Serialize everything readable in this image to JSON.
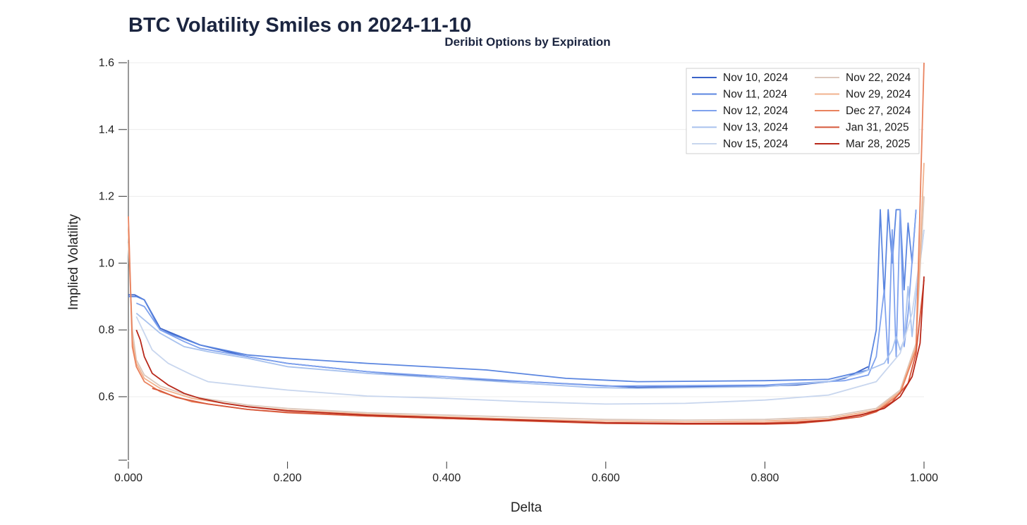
{
  "chart_data": {
    "type": "line",
    "title": "BTC Volatility Smiles on 2024-11-10",
    "subtitle": "Deribit Options by Expiration",
    "xlabel": "Delta",
    "ylabel": "Implied Volatility",
    "xlim": [
      0.0,
      1.0
    ],
    "ylim": [
      0.41,
      1.6
    ],
    "x_ticks": [
      "0.000",
      "0.200",
      "0.400",
      "0.600",
      "0.800",
      "1.000"
    ],
    "y_ticks": [
      "0.6",
      "0.8",
      "1.0",
      "1.2",
      "1.4",
      "1.6"
    ],
    "grid": "horizontal",
    "legend_position": "top-right",
    "series": [
      {
        "name": "Nov 10, 2024",
        "color": "#3a62c8",
        "x": [
          0.0,
          0.008,
          0.02,
          0.04,
          0.09,
          0.15,
          0.2,
          0.3,
          0.4,
          0.5,
          0.64,
          0.8,
          0.84,
          0.88,
          0.9,
          0.93
        ],
        "y": [
          0.905,
          0.905,
          0.89,
          0.805,
          0.755,
          0.72,
          0.7,
          0.675,
          0.655,
          0.645,
          0.628,
          0.632,
          0.635,
          0.645,
          0.655,
          0.69
        ]
      },
      {
        "name": "Nov 11, 2024",
        "color": "#5b86e0",
        "x": [
          0.0,
          0.01,
          0.02,
          0.04,
          0.09,
          0.15,
          0.2,
          0.3,
          0.45,
          0.55,
          0.64,
          0.8,
          0.88,
          0.93,
          0.94,
          0.945,
          0.95,
          0.955,
          0.96,
          0.965,
          0.97,
          0.975,
          0.98,
          0.985,
          0.99
        ],
        "y": [
          0.9,
          0.9,
          0.89,
          0.8,
          0.755,
          0.725,
          0.715,
          0.7,
          0.68,
          0.655,
          0.645,
          0.648,
          0.652,
          0.68,
          0.8,
          1.16,
          0.9,
          1.16,
          1.0,
          1.16,
          1.16,
          0.92,
          1.12,
          1.0,
          1.16
        ]
      },
      {
        "name": "Nov 12, 2024",
        "color": "#7fa2ee",
        "x": [
          0.01,
          0.02,
          0.04,
          0.07,
          0.09,
          0.15,
          0.2,
          0.3,
          0.4,
          0.5,
          0.6,
          0.7,
          0.8,
          0.9,
          0.93,
          0.94,
          0.95,
          0.955,
          0.96,
          0.965,
          0.97,
          0.975,
          0.98,
          0.99
        ],
        "y": [
          0.88,
          0.87,
          0.8,
          0.765,
          0.745,
          0.72,
          0.7,
          0.675,
          0.66,
          0.645,
          0.632,
          0.633,
          0.635,
          0.648,
          0.665,
          0.72,
          0.92,
          0.7,
          1.1,
          0.72,
          1.16,
          0.75,
          0.85,
          1.16
        ]
      },
      {
        "name": "Nov 13, 2024",
        "color": "#a8c2ee",
        "x": [
          0.01,
          0.02,
          0.04,
          0.07,
          0.1,
          0.15,
          0.2,
          0.3,
          0.4,
          0.5,
          0.58,
          0.64,
          0.8,
          0.88,
          0.92,
          0.95,
          0.96,
          0.965,
          0.97,
          0.975,
          0.98,
          0.985,
          0.99,
          1.0
        ],
        "y": [
          0.85,
          0.83,
          0.79,
          0.75,
          0.735,
          0.715,
          0.69,
          0.67,
          0.655,
          0.64,
          0.628,
          0.625,
          0.63,
          0.645,
          0.67,
          0.7,
          0.74,
          0.78,
          0.74,
          0.77,
          0.93,
          0.78,
          0.9,
          1.1
        ]
      },
      {
        "name": "Nov 15, 2024",
        "color": "#c8d6ee",
        "x": [
          0.01,
          0.02,
          0.03,
          0.05,
          0.08,
          0.1,
          0.15,
          0.2,
          0.3,
          0.4,
          0.5,
          0.6,
          0.7,
          0.8,
          0.88,
          0.94,
          0.97,
          0.985,
          1.0
        ],
        "y": [
          0.84,
          0.79,
          0.74,
          0.7,
          0.665,
          0.645,
          0.632,
          0.62,
          0.602,
          0.595,
          0.585,
          0.578,
          0.58,
          0.59,
          0.605,
          0.645,
          0.73,
          0.85,
          1.1
        ]
      },
      {
        "name": "Nov 22, 2024",
        "color": "#dcc8bc",
        "x": [
          0.0,
          0.005,
          0.01,
          0.02,
          0.04,
          0.08,
          0.15,
          0.2,
          0.3,
          0.4,
          0.5,
          0.6,
          0.7,
          0.8,
          0.88,
          0.94,
          0.97,
          0.99,
          1.0
        ],
        "y": [
          1.06,
          0.8,
          0.71,
          0.665,
          0.632,
          0.6,
          0.575,
          0.565,
          0.552,
          0.545,
          0.538,
          0.532,
          0.53,
          0.532,
          0.54,
          0.565,
          0.62,
          0.76,
          1.2
        ]
      },
      {
        "name": "Nov 29, 2024",
        "color": "#f2b28d",
        "x": [
          0.0,
          0.005,
          0.01,
          0.02,
          0.04,
          0.08,
          0.15,
          0.2,
          0.3,
          0.4,
          0.5,
          0.6,
          0.7,
          0.8,
          0.88,
          0.94,
          0.97,
          0.99,
          1.0
        ],
        "y": [
          1.1,
          0.77,
          0.7,
          0.655,
          0.625,
          0.595,
          0.57,
          0.56,
          0.548,
          0.54,
          0.532,
          0.527,
          0.525,
          0.527,
          0.535,
          0.56,
          0.615,
          0.75,
          1.3
        ]
      },
      {
        "name": "Dec 27, 2024",
        "color": "#e9825e",
        "x": [
          0.0,
          0.005,
          0.01,
          0.02,
          0.04,
          0.08,
          0.15,
          0.2,
          0.3,
          0.4,
          0.5,
          0.6,
          0.7,
          0.8,
          0.88,
          0.94,
          0.97,
          0.99,
          1.0
        ],
        "y": [
          1.14,
          0.75,
          0.69,
          0.645,
          0.615,
          0.585,
          0.562,
          0.552,
          0.542,
          0.535,
          0.528,
          0.522,
          0.52,
          0.522,
          0.53,
          0.555,
          0.61,
          0.74,
          1.6
        ]
      },
      {
        "name": "Jan 31, 2025",
        "color": "#d6573a",
        "x": [
          0.03,
          0.04,
          0.06,
          0.08,
          0.1,
          0.15,
          0.2,
          0.3,
          0.4,
          0.5,
          0.6,
          0.7,
          0.8,
          0.84,
          0.88,
          0.92,
          0.94,
          0.96,
          0.98,
          0.99,
          1.0
        ],
        "y": [
          0.625,
          0.618,
          0.598,
          0.588,
          0.578,
          0.562,
          0.553,
          0.542,
          0.535,
          0.527,
          0.52,
          0.518,
          0.518,
          0.52,
          0.528,
          0.54,
          0.555,
          0.585,
          0.64,
          0.73,
          0.95
        ]
      },
      {
        "name": "Mar 28, 2025",
        "color": "#b8281a",
        "x": [
          0.01,
          0.015,
          0.02,
          0.03,
          0.05,
          0.07,
          0.09,
          0.12,
          0.15,
          0.2,
          0.3,
          0.4,
          0.5,
          0.6,
          0.7,
          0.8,
          0.84,
          0.88,
          0.92,
          0.95,
          0.97,
          0.985,
          0.995,
          1.0
        ],
        "y": [
          0.8,
          0.77,
          0.72,
          0.67,
          0.635,
          0.61,
          0.595,
          0.58,
          0.57,
          0.558,
          0.545,
          0.537,
          0.53,
          0.522,
          0.52,
          0.52,
          0.522,
          0.53,
          0.545,
          0.565,
          0.6,
          0.66,
          0.76,
          0.96
        ]
      }
    ]
  }
}
